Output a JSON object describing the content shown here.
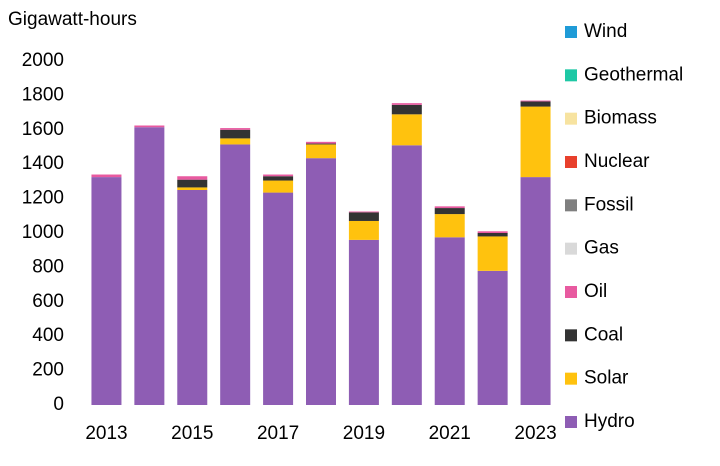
{
  "chart_data": {
    "type": "stacked_bar",
    "title": "Gigawatt-hours",
    "categories": [
      "2013",
      null,
      "2015",
      null,
      "2017",
      null,
      "2019",
      null,
      "2021",
      null,
      "2023"
    ],
    "series": [
      {
        "name": "Hydro",
        "color": "#8e5db4",
        "values": [
          1325,
          1615,
          1250,
          1515,
          1235,
          1435,
          960,
          1510,
          975,
          780,
          1325
        ]
      },
      {
        "name": "Solar",
        "color": "#ffc20e",
        "values": [
          0,
          0,
          15,
          35,
          70,
          80,
          110,
          180,
          135,
          200,
          410
        ]
      },
      {
        "name": "Coal",
        "color": "#333333",
        "values": [
          0,
          0,
          45,
          50,
          25,
          5,
          50,
          55,
          35,
          20,
          30
        ]
      },
      {
        "name": "Oil",
        "color": "#e85aa0",
        "values": [
          15,
          10,
          20,
          10,
          10,
          10,
          5,
          10,
          10,
          10,
          5
        ]
      },
      {
        "name": "Gas",
        "color": "#d9d9d9",
        "values": [
          0,
          0,
          0,
          0,
          0,
          0,
          0,
          0,
          0,
          0,
          0
        ]
      },
      {
        "name": "Fossil",
        "color": "#7f7f7f",
        "values": [
          0,
          0,
          0,
          0,
          0,
          0,
          0,
          0,
          0,
          0,
          0
        ]
      },
      {
        "name": "Nuclear",
        "color": "#e8402c",
        "values": [
          0,
          0,
          0,
          0,
          0,
          0,
          0,
          0,
          0,
          0,
          0
        ]
      },
      {
        "name": "Biomass",
        "color": "#f7e3a0",
        "values": [
          0,
          0,
          0,
          0,
          0,
          0,
          0,
          0,
          0,
          0,
          0
        ]
      },
      {
        "name": "Geothermal",
        "color": "#1ec8a5",
        "values": [
          0,
          0,
          0,
          0,
          0,
          0,
          0,
          0,
          0,
          0,
          0
        ]
      },
      {
        "name": "Wind",
        "color": "#1f9bd7",
        "values": [
          0,
          0,
          0,
          0,
          0,
          0,
          0,
          0,
          0,
          0,
          0
        ]
      }
    ],
    "ylim": [
      0,
      2000
    ],
    "yticks": [
      0,
      200,
      400,
      600,
      800,
      1000,
      1200,
      1400,
      1600,
      1800,
      2000
    ],
    "grid": false,
    "legend": "right"
  }
}
